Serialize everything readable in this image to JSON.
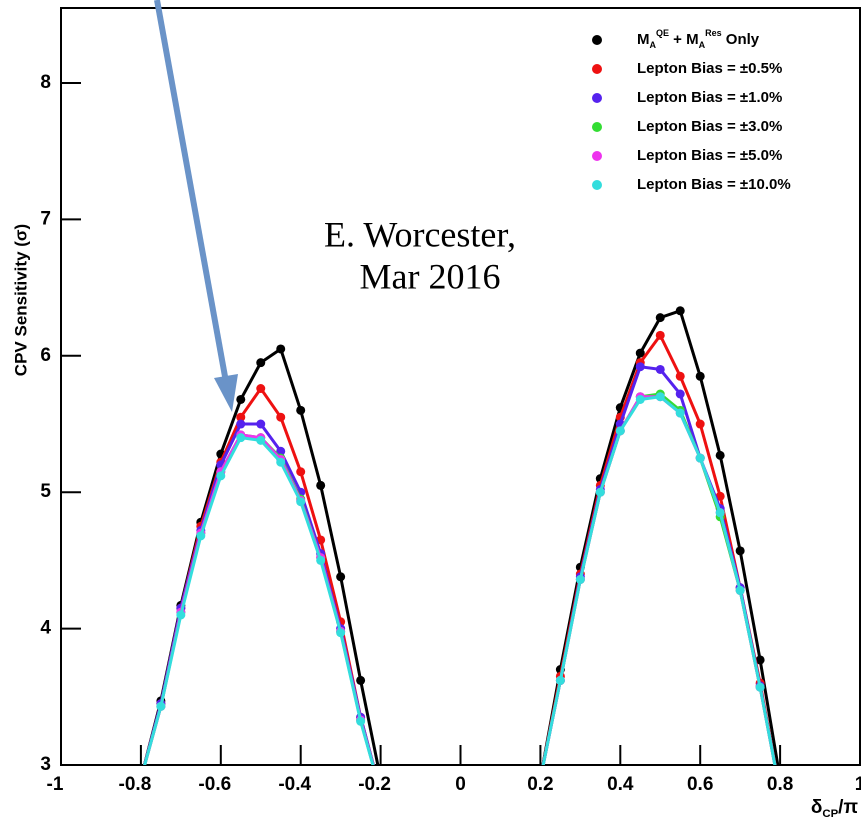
{
  "chart_data": {
    "type": "line",
    "xlabel": "δ_CP/π",
    "ylabel": "CPV Sensitivity (σ)",
    "annotation": [
      "E. Worcester,",
      "Mar 2016"
    ],
    "x": [
      -0.8,
      -0.75,
      -0.7,
      -0.65,
      -0.6,
      -0.55,
      -0.5,
      -0.45,
      -0.4,
      -0.35,
      -0.3,
      -0.25,
      -0.2,
      0,
      0.2,
      0.25,
      0.3,
      0.35,
      0.4,
      0.45,
      0.5,
      0.55,
      0.6,
      0.65,
      0.7,
      0.75,
      0.8
    ],
    "series": [
      {
        "name": "M_A^QE + M_A^Res Only",
        "color": "#000000",
        "values": [
          2.9,
          3.47,
          4.17,
          4.78,
          5.28,
          5.68,
          5.95,
          6.05,
          5.6,
          5.05,
          4.38,
          3.62,
          2.9,
          null,
          2.9,
          3.7,
          4.45,
          5.1,
          5.62,
          6.02,
          6.28,
          6.33,
          5.85,
          5.27,
          4.57,
          3.77,
          2.9
        ]
      },
      {
        "name": "Lepton Bias = ±0.5%",
        "color": "#ee1111",
        "values": [
          2.9,
          3.45,
          4.15,
          4.75,
          5.22,
          5.55,
          5.76,
          5.55,
          5.15,
          4.65,
          4.05,
          3.35,
          2.8,
          null,
          2.9,
          3.65,
          4.4,
          5.05,
          5.55,
          5.95,
          6.15,
          5.85,
          5.5,
          4.97,
          4.3,
          3.6,
          2.8
        ]
      },
      {
        "name": "Lepton Bias = ±1.0%",
        "color": "#5522ee",
        "values": [
          2.9,
          3.45,
          4.15,
          4.72,
          5.2,
          5.5,
          5.5,
          5.3,
          5.0,
          4.55,
          4.0,
          3.35,
          2.8,
          null,
          2.9,
          3.62,
          4.38,
          5.02,
          5.5,
          5.92,
          5.9,
          5.72,
          5.25,
          4.88,
          4.3,
          3.58,
          2.8
        ]
      },
      {
        "name": "Lepton Bias = ±3.0%",
        "color": "#33dd33",
        "values": [
          2.9,
          3.43,
          4.12,
          4.7,
          5.15,
          5.42,
          5.4,
          5.25,
          4.95,
          4.52,
          3.98,
          3.33,
          2.8,
          null,
          2.9,
          3.62,
          4.36,
          5.0,
          5.45,
          5.7,
          5.72,
          5.6,
          5.25,
          4.82,
          4.28,
          3.57,
          2.8
        ]
      },
      {
        "name": "Lepton Bias = ±5.0%",
        "color": "#ee33ee",
        "values": [
          2.9,
          3.43,
          4.12,
          4.7,
          5.15,
          5.42,
          5.4,
          5.24,
          4.94,
          4.52,
          3.98,
          3.33,
          2.8,
          null,
          2.9,
          3.62,
          4.36,
          5.0,
          5.45,
          5.7,
          5.7,
          5.58,
          5.25,
          4.85,
          4.28,
          3.57,
          2.8
        ]
      },
      {
        "name": "Lepton Bias = ±10.0%",
        "color": "#33dddd",
        "values": [
          2.9,
          3.43,
          4.1,
          4.68,
          5.12,
          5.4,
          5.38,
          5.22,
          4.93,
          4.5,
          3.97,
          3.32,
          2.8,
          null,
          2.9,
          3.62,
          4.36,
          5.0,
          5.45,
          5.68,
          5.7,
          5.58,
          5.25,
          4.85,
          4.28,
          3.57,
          2.8
        ]
      }
    ],
    "xlim": [
      -1,
      1
    ],
    "ylim": [
      3,
      8.55
    ],
    "xticks": [
      -1,
      -0.8,
      -0.6,
      -0.4,
      -0.2,
      0,
      0.2,
      0.4,
      0.6,
      0.8,
      1
    ],
    "yticks": [
      3,
      4,
      5,
      6,
      7,
      8
    ],
    "legend": "upper right"
  }
}
